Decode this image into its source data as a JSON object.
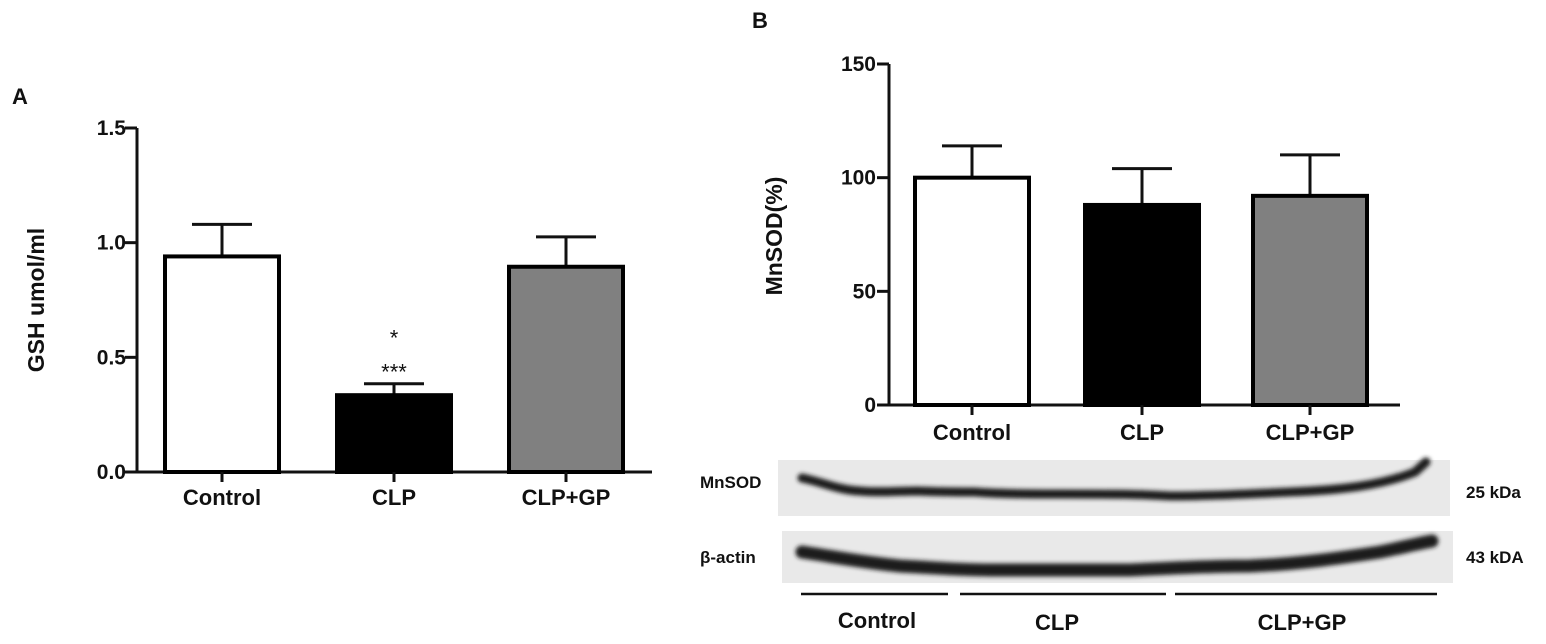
{
  "chart_data": [
    {
      "panel": "A",
      "type": "bar",
      "categories": [
        "Control",
        "CLP",
        "CLP+GP"
      ],
      "values": [
        0.94,
        0.335,
        0.895
      ],
      "errors": [
        0.14,
        0.05,
        0.13
      ],
      "bar_colors": [
        "#ffffff",
        "#000000",
        "#808080"
      ],
      "ylabel": "GSH umol/ml",
      "ylim": [
        0,
        1.5
      ],
      "yticks": [
        "0.0",
        "0.5",
        "1.0",
        "1.5"
      ],
      "annotations": [
        {
          "category": "CLP",
          "text": "*",
          "row": 2
        },
        {
          "category": "CLP",
          "text": "***",
          "row": 1
        }
      ]
    },
    {
      "panel": "B",
      "type": "bar",
      "categories": [
        "Control",
        "CLP",
        "CLP+GP"
      ],
      "values": [
        100,
        88,
        92
      ],
      "errors": [
        14,
        16,
        18
      ],
      "bar_colors": [
        "#ffffff",
        "#000000",
        "#808080"
      ],
      "ylabel": "MnSOD(%)",
      "ylim": [
        0,
        150
      ],
      "yticks": [
        "0",
        "50",
        "100",
        "150"
      ]
    }
  ],
  "blot": {
    "rows": [
      {
        "label": "MnSOD",
        "size": "25 kDa"
      },
      {
        "label": "β-actin",
        "size": "43 kDA"
      }
    ],
    "groups": [
      "Control",
      "CLP",
      "CLP+GP"
    ]
  }
}
